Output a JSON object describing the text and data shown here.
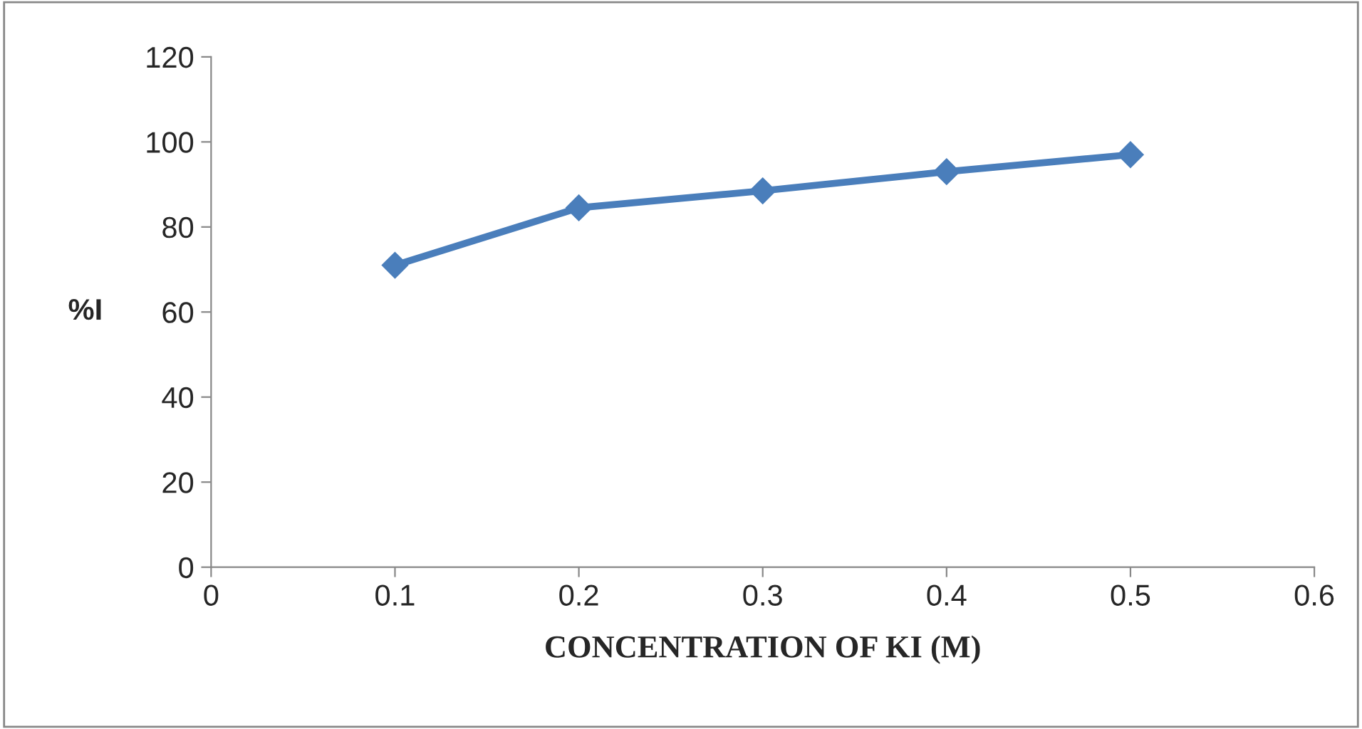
{
  "chart_data": {
    "type": "line",
    "xlabel": "CONCENTRATION OF KI (M)",
    "ylabel": "%I",
    "x": [
      0.1,
      0.2,
      0.3,
      0.4,
      0.5
    ],
    "series": [
      {
        "color": "#4a7ebb",
        "values": [
          71,
          84.5,
          88.5,
          93,
          97
        ]
      }
    ],
    "xlim": [
      0,
      0.6
    ],
    "xticks": [
      0,
      0.1,
      0.2,
      0.3,
      0.4,
      0.5,
      0.6
    ],
    "ylim": [
      0,
      120
    ],
    "yticks": [
      0,
      20,
      40,
      60,
      80,
      100,
      120
    ],
    "grid": false,
    "legend": false,
    "marker": "diamond",
    "line_style": "solid"
  }
}
